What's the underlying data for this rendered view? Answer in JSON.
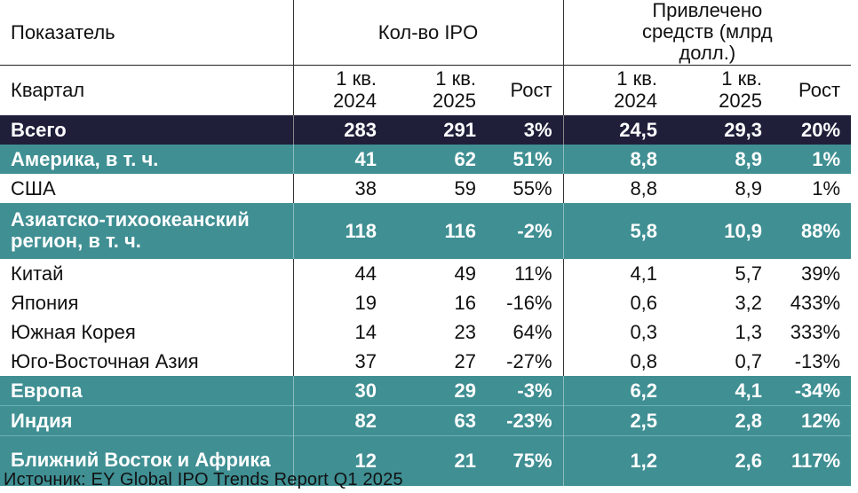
{
  "header": {
    "indicator_label": "Показатель",
    "ipo_count_label": "Кол-во IPO",
    "raised_label": "Привлечено средств (млрд долл.)",
    "quarter_label": "Квартал",
    "q1_2024": "1 кв. 2024",
    "q1_2025": "1 кв. 2025",
    "growth": "Рост"
  },
  "rows": [
    {
      "name": "Всего",
      "ipo_2024": "283",
      "ipo_2025": "291",
      "ipo_growth": "3%",
      "raised_2024": "24,5",
      "raised_2025": "29,3",
      "raised_growth": "20%",
      "style": "total"
    },
    {
      "name": "Америка, в т. ч.",
      "ipo_2024": "41",
      "ipo_2025": "62",
      "ipo_growth": "51%",
      "raised_2024": "8,8",
      "raised_2025": "8,9",
      "raised_growth": "1%",
      "style": "teal"
    },
    {
      "name": "США",
      "ipo_2024": "38",
      "ipo_2025": "59",
      "ipo_growth": "55%",
      "raised_2024": "8,8",
      "raised_2025": "8,9",
      "raised_growth": "1%",
      "style": "plain"
    },
    {
      "name": "Азиатско-тихоокеанский регион, в т. ч.",
      "ipo_2024": "118",
      "ipo_2025": "116",
      "ipo_growth": "-2%",
      "raised_2024": "5,8",
      "raised_2025": "10,9",
      "raised_growth": "88%",
      "style": "teal"
    },
    {
      "name": "Китай",
      "ipo_2024": "44",
      "ipo_2025": "49",
      "ipo_growth": "11%",
      "raised_2024": "4,1",
      "raised_2025": "5,7",
      "raised_growth": "39%",
      "style": "plain"
    },
    {
      "name": "Япония",
      "ipo_2024": "19",
      "ipo_2025": "16",
      "ipo_growth": "-16%",
      "raised_2024": "0,6",
      "raised_2025": "3,2",
      "raised_growth": "433%",
      "style": "plain"
    },
    {
      "name": "Южная Корея",
      "ipo_2024": "14",
      "ipo_2025": "23",
      "ipo_growth": "64%",
      "raised_2024": "0,3",
      "raised_2025": "1,3",
      "raised_growth": "333%",
      "style": "plain"
    },
    {
      "name": "Юго-Восточная Азия",
      "ipo_2024": "37",
      "ipo_2025": "27",
      "ipo_growth": "-27%",
      "raised_2024": "0,8",
      "raised_2025": "0,7",
      "raised_growth": "-13%",
      "style": "plain"
    },
    {
      "name": "Европа",
      "ipo_2024": "30",
      "ipo_2025": "29",
      "ipo_growth": "-3%",
      "raised_2024": "6,2",
      "raised_2025": "4,1",
      "raised_growth": "-34%",
      "style": "teal"
    },
    {
      "name": "Индия",
      "ipo_2024": "82",
      "ipo_2025": "63",
      "ipo_growth": "-23%",
      "raised_2024": "2,5",
      "raised_2025": "2,8",
      "raised_growth": "12%",
      "style": "teal"
    },
    {
      "name": "Ближний Восток и Африка",
      "ipo_2024": "12",
      "ipo_2025": "21",
      "ipo_growth": "75%",
      "raised_2024": "1,2",
      "raised_2025": "2,6",
      "raised_growth": "117%",
      "style": "teal"
    }
  ],
  "source": "Источник: EY Global IPO Trends Report Q1 2025",
  "colors": {
    "total_bg": "#1f1f3a",
    "teal_bg": "#3f8f93",
    "text": "#111111"
  }
}
